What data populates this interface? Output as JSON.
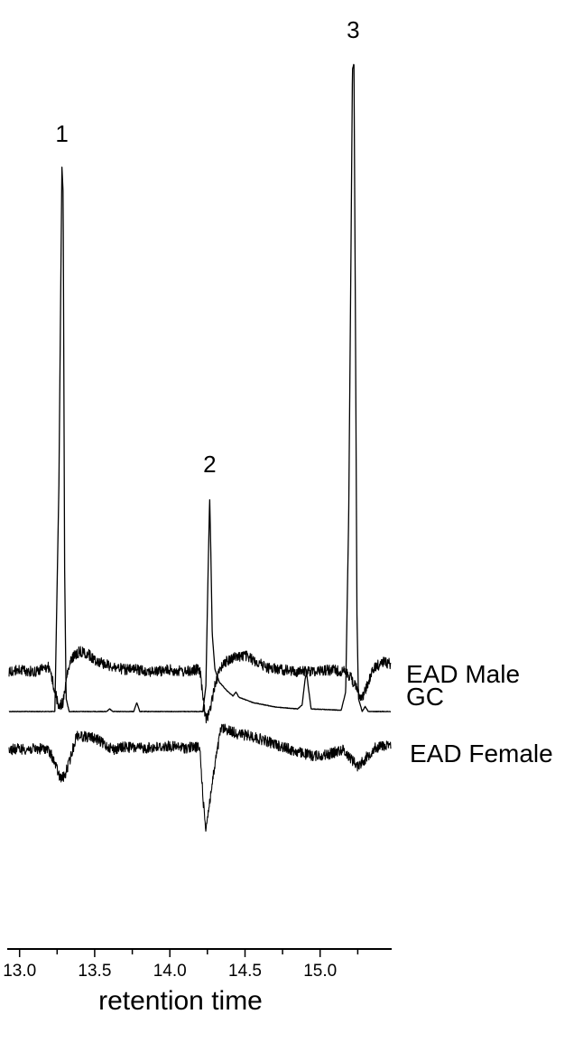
{
  "chart_data": {
    "type": "line",
    "xlabel": "retention time",
    "xlim": [
      12.93,
      15.47
    ],
    "ticks": [
      {
        "value": 13.0,
        "label": "13.0",
        "major": true
      },
      {
        "value": 13.25,
        "label": "",
        "major": false
      },
      {
        "value": 13.5,
        "label": "13.5",
        "major": true
      },
      {
        "value": 13.75,
        "label": "",
        "major": false
      },
      {
        "value": 14.0,
        "label": "14.0",
        "major": true
      },
      {
        "value": 14.25,
        "label": "",
        "major": false
      },
      {
        "value": 14.5,
        "label": "14.5",
        "major": true
      },
      {
        "value": 14.75,
        "label": "",
        "major": false
      },
      {
        "value": 15.0,
        "label": "15.0",
        "major": true
      },
      {
        "value": 15.25,
        "label": "",
        "major": false
      }
    ],
    "series": [
      {
        "name": "GC",
        "points": [
          [
            12.93,
            0.0
          ],
          [
            13.2,
            0.0
          ],
          [
            13.235,
            0.0
          ],
          [
            13.262,
            0.35
          ],
          [
            13.276,
            0.7
          ],
          [
            13.282,
            0.84
          ],
          [
            13.29,
            0.8
          ],
          [
            13.3,
            0.22
          ],
          [
            13.31,
            0.02
          ],
          [
            13.33,
            0.0
          ],
          [
            13.58,
            0.0
          ],
          [
            13.6,
            0.004
          ],
          [
            13.62,
            0.0
          ],
          [
            13.76,
            0.0
          ],
          [
            13.78,
            0.014
          ],
          [
            13.8,
            0.0
          ],
          [
            14.22,
            0.0
          ],
          [
            14.24,
            0.04
          ],
          [
            14.255,
            0.22
          ],
          [
            14.265,
            0.33
          ],
          [
            14.272,
            0.255
          ],
          [
            14.282,
            0.12
          ],
          [
            14.3,
            0.065
          ],
          [
            14.33,
            0.045
          ],
          [
            14.38,
            0.032
          ],
          [
            14.42,
            0.024
          ],
          [
            14.44,
            0.03
          ],
          [
            14.46,
            0.022
          ],
          [
            14.55,
            0.014
          ],
          [
            14.7,
            0.007
          ],
          [
            14.85,
            0.004
          ],
          [
            14.88,
            0.01
          ],
          [
            14.9,
            0.05
          ],
          [
            14.91,
            0.06
          ],
          [
            14.92,
            0.04
          ],
          [
            14.94,
            0.004
          ],
          [
            15.14,
            0.002
          ],
          [
            15.17,
            0.03
          ],
          [
            15.19,
            0.3
          ],
          [
            15.205,
            0.7
          ],
          [
            15.215,
            0.99
          ],
          [
            15.225,
            1.0
          ],
          [
            15.235,
            0.6
          ],
          [
            15.245,
            0.15
          ],
          [
            15.255,
            0.02
          ],
          [
            15.28,
            0.0
          ],
          [
            15.3,
            0.008
          ],
          [
            15.32,
            0.0
          ],
          [
            15.47,
            0.0
          ]
        ]
      },
      {
        "name": "EAD Female",
        "points": [
          [
            12.93,
            0.0
          ],
          [
            13.0,
            0.01
          ],
          [
            13.1,
            0.005
          ],
          [
            13.18,
            0.02
          ],
          [
            13.22,
            -0.15
          ],
          [
            13.27,
            -0.55
          ],
          [
            13.3,
            -0.52
          ],
          [
            13.34,
            -0.15
          ],
          [
            13.38,
            0.28
          ],
          [
            13.42,
            0.25
          ],
          [
            13.5,
            0.22
          ],
          [
            13.56,
            0.1
          ],
          [
            13.63,
            0.0
          ],
          [
            13.7,
            0.05
          ],
          [
            13.8,
            0.02
          ],
          [
            13.9,
            0.04
          ],
          [
            14.0,
            0.06
          ],
          [
            14.1,
            0.03
          ],
          [
            14.18,
            0.05
          ],
          [
            14.2,
            0.0
          ],
          [
            14.225,
            -1.1
          ],
          [
            14.24,
            -1.5
          ],
          [
            14.26,
            -1.1
          ],
          [
            14.3,
            -0.3
          ],
          [
            14.34,
            0.4
          ],
          [
            14.38,
            0.38
          ],
          [
            14.45,
            0.3
          ],
          [
            14.55,
            0.25
          ],
          [
            14.65,
            0.15
          ],
          [
            14.75,
            0.05
          ],
          [
            14.85,
            -0.05
          ],
          [
            14.95,
            -0.12
          ],
          [
            15.05,
            -0.1
          ],
          [
            15.15,
            0.0
          ],
          [
            15.2,
            -0.15
          ],
          [
            15.25,
            -0.32
          ],
          [
            15.3,
            -0.18
          ],
          [
            15.36,
            0.02
          ],
          [
            15.42,
            0.08
          ],
          [
            15.47,
            0.05
          ]
        ]
      },
      {
        "name": "EAD Male",
        "points": [
          [
            12.93,
            0.0
          ],
          [
            13.0,
            0.05
          ],
          [
            13.1,
            0.0
          ],
          [
            13.18,
            0.12
          ],
          [
            13.2,
            0.1
          ],
          [
            13.23,
            -0.4
          ],
          [
            13.26,
            -0.85
          ],
          [
            13.29,
            -0.75
          ],
          [
            13.32,
            0.0
          ],
          [
            13.35,
            0.35
          ],
          [
            13.4,
            0.5
          ],
          [
            13.45,
            0.45
          ],
          [
            13.5,
            0.3
          ],
          [
            13.6,
            0.15
          ],
          [
            13.7,
            0.05
          ],
          [
            13.8,
            0.05
          ],
          [
            13.9,
            0.0
          ],
          [
            14.0,
            0.05
          ],
          [
            14.1,
            0.0
          ],
          [
            14.18,
            0.05
          ],
          [
            14.2,
            0.05
          ],
          [
            14.225,
            -0.8
          ],
          [
            14.24,
            -1.2
          ],
          [
            14.27,
            -0.9
          ],
          [
            14.3,
            -0.3
          ],
          [
            14.35,
            0.2
          ],
          [
            14.42,
            0.35
          ],
          [
            14.5,
            0.4
          ],
          [
            14.55,
            0.3
          ],
          [
            14.65,
            0.1
          ],
          [
            14.75,
            0.05
          ],
          [
            14.85,
            0.0
          ],
          [
            14.95,
            0.02
          ],
          [
            15.05,
            0.05
          ],
          [
            15.15,
            0.02
          ],
          [
            15.2,
            -0.1
          ],
          [
            15.24,
            -0.4
          ],
          [
            15.28,
            -0.65
          ],
          [
            15.31,
            -0.35
          ],
          [
            15.36,
            0.1
          ],
          [
            15.42,
            0.25
          ],
          [
            15.47,
            0.2
          ]
        ]
      }
    ],
    "peak_labels": [
      {
        "text": "1",
        "x": 13.282,
        "y": 0.84
      },
      {
        "text": "2",
        "x": 14.265,
        "y": 0.33
      },
      {
        "text": "3",
        "x": 15.22,
        "y": 1.0
      }
    ],
    "grid": false,
    "legend": "none"
  }
}
